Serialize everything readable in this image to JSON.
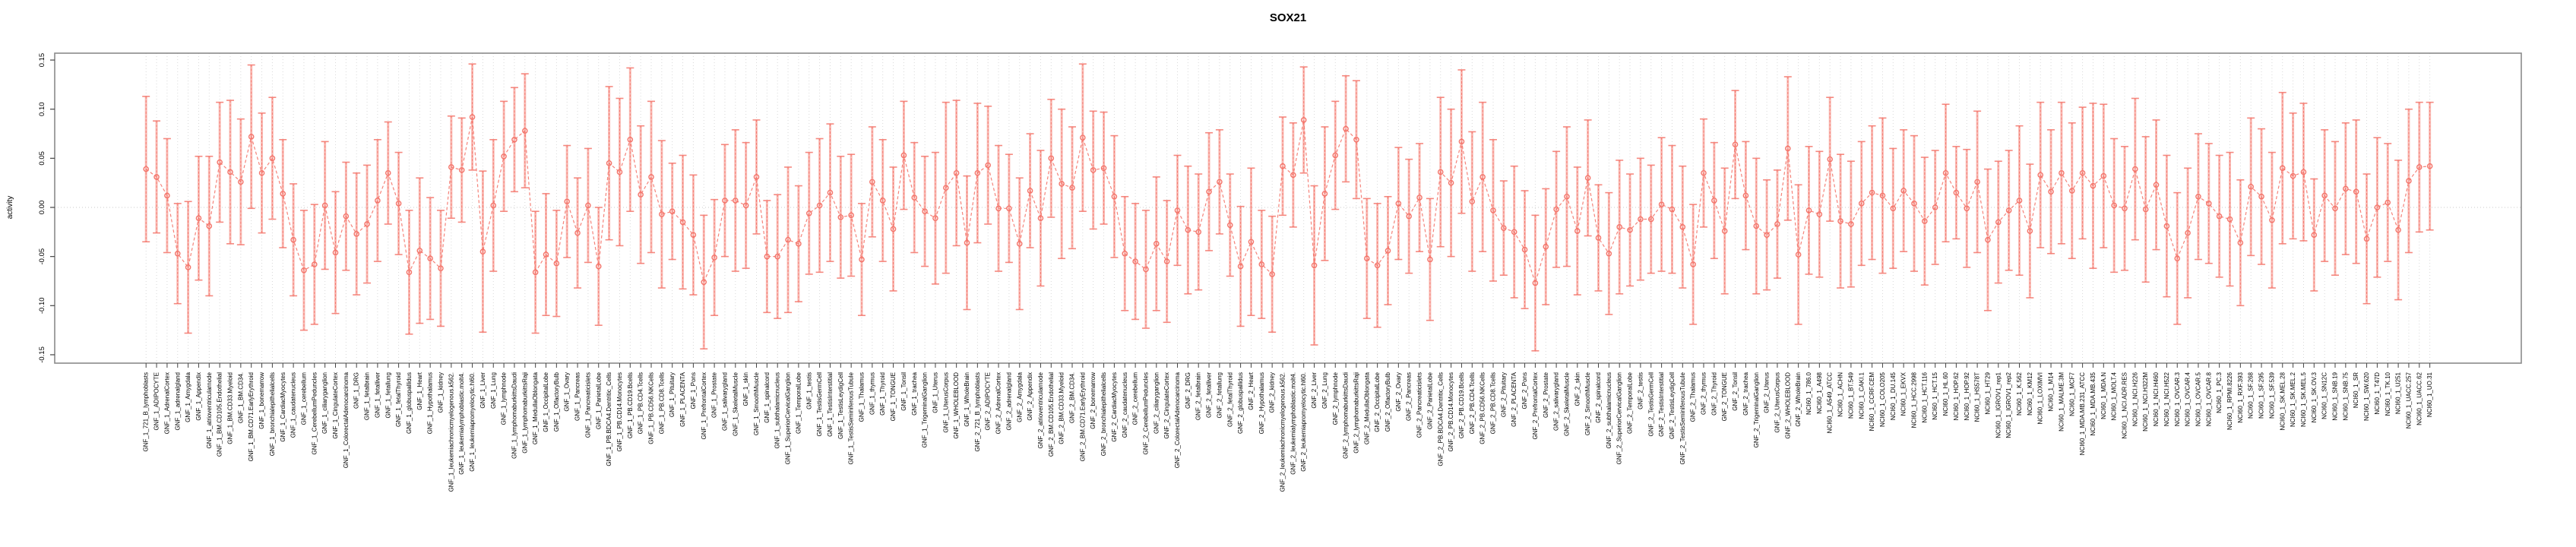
{
  "title": "SOX21",
  "colors": {
    "point": "#f4756b",
    "error_light": "#f9aca4",
    "grid": "#d9d9d9",
    "zero_line": "#c9c9c9",
    "box_border": "#8a8a8a",
    "text": "#000000"
  },
  "chart_data": {
    "type": "line",
    "title": "SOX21",
    "xlabel": "",
    "ylabel": "activity",
    "ylim": [
      -0.15,
      0.15
    ],
    "yticks": [
      -0.15,
      -0.1,
      -0.05,
      0.0,
      0.05,
      0.1,
      0.15
    ],
    "ytick_labels": [
      "-0.15",
      "-0.10",
      "-0.05",
      "0.00",
      "0.05",
      "0.10",
      "0.15"
    ],
    "grid": "vertical-dotted-per-category, horizontal-dotted-at-zero",
    "legend": "none",
    "marker": "open-circle",
    "line_style": "dashed",
    "error_bars": true,
    "categories": [
      "GNF_1_721_B_lymphoblasts",
      "GNF_1_ADIPOCYTE",
      "GNF_1_AdrenalCortex",
      "GNF_1_adrenalgland",
      "GNF_1_Amygdala",
      "GNF_1_Appendix",
      "GNF_1_atrioventricularnode",
      "GNF_1_BM.CD105.Endothelial",
      "GNF_1_BM.CD33.Myeloid",
      "GNF_1_BM.CD34.",
      "GNF_1_BM.CD71.EarlyErythroid",
      "GNF_1_bonemarrow",
      "GNF_1_bronchialepithelialcells",
      "GNF_1_CardiacMyocytes",
      "GNF_1_caudatenucleus",
      "GNF_1_cerebellum",
      "GNF_1_CerebellumPeduncles",
      "GNF_1_ciliaryganglion",
      "GNF_1_CingulateCortex",
      "GNF_1_ColorectalAdenocarcinoma",
      "GNF_1_DRG",
      "GNF_1_fetalbrain",
      "GNF_1_fetalliver",
      "GNF_1_fetallung",
      "GNF_1_fetalThyroid",
      "GNF_1_globuspallidus",
      "GNF_1_Heart",
      "GNF_1_Hypothalamus",
      "GNF_1_kidney",
      "GNF_1_leukemiachronicmyelogenous.k562.",
      "GNF_1_leukemialymphoblastic.molt4.",
      "GNF_1_leukemiapromyelocytic.hl60.",
      "GNF_1_Liver",
      "GNF_1_Lung",
      "GNF_1_lymphnode",
      "GNF_1_lymphomaburkittsDaudi",
      "GNF_1_lymphomaburkittsRaji",
      "GNF_1_MedullaOblongata",
      "GNF_1_OccipitalLobe",
      "GNF_1_OlfactoryBulb",
      "GNF_1_Ovary",
      "GNF_1_Pancreas",
      "GNF_1_Pancreaticislets",
      "GNF_1_ParietalLobe",
      "GNF_1_PB.BDCA4.Dentritic_Cells",
      "GNF_1_PB.CD14.Monocytes",
      "GNF_1_PB.CD19.Bcells",
      "GNF_1_PB.CD4.Tcells",
      "GNF_1_PB.CD56.NKCells",
      "GNF_1_PB.CD8.Tcells",
      "GNF_1_Pituitary",
      "GNF_1_PLACENTA",
      "GNF_1_Pons",
      "GNF_1_PrefrontalCortex",
      "GNF_1_Prostate",
      "GNF_1_salivarygland",
      "GNF_1_SkeletalMuscle",
      "GNF_1_skin",
      "GNF_1_SmoothMuscle",
      "GNF_1_spinalcord",
      "GNF_1_subthalamicnucleus",
      "GNF_1_SuperiorCervicalGanglion",
      "GNF_1_TemporalLobe",
      "GNF_1_testis",
      "GNF_1_TestisGermCell",
      "GNF_1_TestisInterstitial",
      "GNF_1_TestisLeydigCell",
      "GNF_1_TestisSeminiferousTubule",
      "GNF_1_Thalamus",
      "GNF_1_thymus",
      "GNF_1_Thyroid",
      "GNF_1_TONGUE",
      "GNF_1_Tonsil",
      "GNF_1_trachea",
      "GNF_1_TrigeminalGanglion",
      "GNF_1_Uterus",
      "GNF_1_UterusCorpus",
      "GNF_1_WHOLEBLOOD",
      "GNF_1_WholeBrain",
      "GNF_2_721_B_lymphoblasts",
      "GNF_2_ADIPOCYTE",
      "GNF_2_AdrenalCortex",
      "GNF_2_adrenalgland",
      "GNF_2_Amygdala",
      "GNF_2_Appendix",
      "GNF_2_atrioventricularnode",
      "GNF_2_BM.CD105.Endothelial",
      "GNF_2_BM.CD33.Myeloid",
      "GNF_2_BM.CD34.",
      "GNF_2_BM.CD71.EarlyErythroid",
      "GNF_2_bonemarrow",
      "GNF_2_bronchialepithelialcells",
      "GNF_2_CardiacMyocytes",
      "GNF_2_caudatenucleus",
      "GNF_2_cerebellum",
      "GNF_2_CerebellumPeduncles",
      "GNF_2_ciliaryganglion",
      "GNF_2_CingulateCortex",
      "GNF_2_ColorectalAdenocarcinoma",
      "GNF_2_DRG",
      "GNF_2_fetalbrain",
      "GNF_2_fetalliver",
      "GNF_2_fetallung",
      "GNF_2_fetalThyroid",
      "GNF_2_globuspallidus",
      "GNF_2_Heart",
      "GNF_2_Hypothalamus",
      "GNF_2_kidney",
      "GNF_2_leukemiachronicmyelogenous.k562.",
      "GNF_2_leukemialymphoblastic.molt4.",
      "GNF_2_leukemiapromyelocytic.hl60.",
      "GNF_2_Liver",
      "GNF_2_Lung",
      "GNF_2_lymphnode",
      "GNF_2_lymphomaburkittsDaudi",
      "GNF_2_lymphomaburkittsRaji",
      "GNF_2_MedullaOblongata",
      "GNF_2_OccipitalLobe",
      "GNF_2_OlfactoryBulb",
      "GNF_2_Ovary",
      "GNF_2_Pancreas",
      "GNF_2_Pancreaticislets",
      "GNF_2_ParietalLobe",
      "GNF_2_PB.BDCA4.Dentritic_Cells",
      "GNF_2_PB.CD14.Monocytes",
      "GNF_2_PB.CD19.Bcells",
      "GNF_2_PB.CD4.Tcells",
      "GNF_2_PB.CD56.NKCells",
      "GNF_2_PB.CD8.Tcells",
      "GNF_2_Pituitary",
      "GNF_2_PLACENTA",
      "GNF_2_Pons",
      "GNF_2_PrefrontalCortex",
      "GNF_2_Prostate",
      "GNF_2_salivarygland",
      "GNF_2_SkeletalMuscle",
      "GNF_2_skin",
      "GNF_2_SmoothMuscle",
      "GNF_2_spinalcord",
      "GNF_2_subthalamicnucleus",
      "GNF_2_SuperiorCervicalGanglion",
      "GNF_2_TemporalLobe",
      "GNF_2_testis",
      "GNF_2_TestisGermCell",
      "GNF_2_TestisInterstitial",
      "GNF_2_TestisLeydigCell",
      "GNF_2_TestisSeminiferousTubule",
      "GNF_2_Thalamus",
      "GNF_2_thymus",
      "GNF_2_Thyroid",
      "GNF_2_TONGUE",
      "GNF_2_Tonsil",
      "GNF_2_trachea",
      "GNF_2_TrigeminalGanglion",
      "GNF_2_Uterus",
      "GNF_2_UterusCorpus",
      "GNF_2_WHOLEBLOOD",
      "GNF_2_WholeBrain",
      "NCI60_1_786.0",
      "NCI60_1_A498",
      "NCI60_1_A549_ATCC",
      "NCI60_1_ACHN",
      "NCI60_1_BT.549",
      "NCI60_1_CAKI.1",
      "NCI60_1_CCRF.CEM",
      "NCI60_1_COLO205",
      "NCI60_1_DU.145",
      "NCI60_1_EKVX",
      "NCI60_1_HCC.2998",
      "NCI60_1_HCT.116",
      "NCI60_1_HCT.15",
      "NCI60_1_HL.60",
      "NCI60_1_HOP.62",
      "NCI60_1_HOP.92",
      "NCI60_1_HS578T",
      "NCI60_1_HT29",
      "NCI60_1_IGROV1_rep1",
      "NCI60_1_IGROV1_rep2",
      "NCI60_1_K.562",
      "NCI60_1_KM12",
      "NCI60_1_LOXIMVI",
      "NCI60_1_M14",
      "NCI60_1_MALME.3M",
      "NCI60_1_MCF7",
      "NCI60_1_MDA.MB.231_ATCC",
      "NCI60_1_MDA.MB.435",
      "NCI60_1_MDA.N",
      "NCI60_1_MOLT.4",
      "NCI60_1_NCI.ADR.RES",
      "NCI60_1_NCI.H226",
      "NCI60_1_NCI.H322M",
      "NCI60_1_NCI.H460",
      "NCI60_1_NCI.H522",
      "NCI60_1_OVCAR.3",
      "NCI60_1_OVCAR.4",
      "NCI60_1_OVCAR.5",
      "NCI60_1_OVCAR.8",
      "NCI60_1_PC.3",
      "NCI60_1_RPMI.8226",
      "NCI60_1_RXF.393",
      "NCI60_1_SF.268",
      "NCI60_1_SF.295",
      "NCI60_1_SF.539",
      "NCI60_1_SK.MEL.28",
      "NCI60_1_SK.MEL.2",
      "NCI60_1_SK.MEL.5",
      "NCI60_1_SK.OV.3",
      "NCI60_1_SN12C",
      "NCI60_1_SNB.19",
      "NCI60_1_SNB.75",
      "NCI60_1_SR",
      "NCI60_1_SW.620",
      "NCI60_1_T47D",
      "NCI60_1_TK.10",
      "NCI60_1_U251",
      "NCI60_1_UACC.257",
      "NCI60_1_UACC.62",
      "NCI60_1_UO.31"
    ],
    "values": [
      0.039,
      0.031,
      0.012,
      -0.047,
      -0.061,
      -0.011,
      -0.019,
      0.046,
      0.036,
      0.026,
      0.072,
      0.035,
      0.05,
      0.014,
      -0.033,
      -0.064,
      -0.058,
      0.002,
      -0.046,
      -0.009,
      -0.027,
      -0.017,
      0.007,
      0.035,
      0.004,
      -0.066,
      -0.044,
      -0.052,
      -0.062,
      0.041,
      0.038,
      0.092,
      -0.045,
      0.002,
      0.052,
      0.069,
      0.078,
      -0.066,
      -0.048,
      -0.057,
      0.006,
      -0.026,
      0.002,
      -0.06,
      0.045,
      0.036,
      0.069,
      0.013,
      0.031,
      -0.007,
      -0.004,
      -0.015,
      -0.028,
      -0.076,
      -0.051,
      0.007,
      0.007,
      0.002,
      0.031,
      -0.05,
      -0.05,
      -0.033,
      -0.037,
      -0.006,
      0.002,
      0.015,
      -0.01,
      -0.008,
      -0.053,
      0.026,
      0.007,
      -0.022,
      0.053,
      0.01,
      -0.004,
      -0.011,
      0.02,
      0.035,
      -0.036,
      0.035,
      0.043,
      -0.001,
      -0.001,
      -0.037,
      0.017,
      -0.011,
      0.05,
      0.024,
      0.02,
      0.071,
      0.038,
      0.04,
      0.011,
      -0.047,
      -0.055,
      -0.063,
      -0.037,
      -0.055,
      -0.003,
      -0.023,
      -0.025,
      0.016,
      0.026,
      -0.018,
      -0.06,
      -0.035,
      -0.058,
      -0.068,
      0.042,
      0.033,
      0.089,
      -0.059,
      0.014,
      0.053,
      0.08,
      0.069,
      -0.052,
      -0.059,
      -0.044,
      0.004,
      -0.009,
      0.01,
      -0.053,
      0.036,
      0.025,
      0.067,
      0.006,
      0.031,
      -0.003,
      -0.021,
      -0.025,
      -0.043,
      -0.077,
      -0.04,
      -0.002,
      0.011,
      -0.024,
      0.03,
      -0.031,
      -0.047,
      -0.02,
      -0.023,
      -0.012,
      -0.012,
      0.003,
      -0.002,
      -0.02,
      -0.058,
      0.035,
      0.007,
      -0.024,
      0.064,
      0.012,
      -0.019,
      -0.028,
      -0.017,
      0.06,
      -0.048,
      -0.003,
      -0.007,
      0.049,
      -0.014,
      -0.017,
      0.004,
      0.015,
      0.012,
      -0.001,
      0.017,
      0.004,
      -0.014,
      0.0,
      0.035,
      0.015,
      -0.001,
      0.026,
      -0.033,
      -0.015,
      -0.003,
      0.007,
      -0.024,
      0.033,
      0.016,
      0.035,
      0.017,
      0.035,
      0.022,
      0.032,
      0.002,
      -0.001,
      0.039,
      -0.002,
      0.023,
      -0.019,
      -0.052,
      -0.026,
      0.011,
      0.004,
      -0.009,
      -0.012,
      -0.036,
      0.021,
      0.011,
      -0.013,
      0.04,
      0.032,
      0.036,
      -0.028,
      0.012,
      -0.001,
      0.019,
      0.016,
      -0.032,
      0.0,
      0.005,
      -0.023,
      0.027,
      0.041,
      0.042
    ],
    "errors": [
      0.074,
      0.057,
      0.058,
      0.051,
      0.067,
      0.063,
      0.071,
      0.061,
      0.073,
      0.064,
      0.073,
      0.061,
      0.062,
      0.055,
      0.057,
      0.061,
      0.061,
      0.065,
      0.062,
      0.055,
      0.062,
      0.06,
      0.062,
      0.052,
      0.052,
      0.063,
      0.074,
      0.062,
      0.059,
      0.052,
      0.053,
      0.054,
      0.082,
      0.067,
      0.056,
      0.053,
      0.058,
      0.062,
      0.062,
      0.054,
      0.057,
      0.056,
      0.058,
      0.06,
      0.078,
      0.075,
      0.073,
      0.07,
      0.077,
      0.075,
      0.049,
      0.068,
      0.061,
      0.068,
      0.059,
      0.057,
      0.072,
      0.064,
      0.058,
      0.057,
      0.063,
      0.074,
      0.059,
      0.062,
      0.068,
      0.07,
      0.062,
      0.062,
      0.057,
      0.056,
      0.062,
      0.063,
      0.055,
      0.056,
      0.056,
      0.067,
      0.087,
      0.074,
      0.068,
      0.071,
      0.06,
      0.064,
      0.055,
      0.067,
      0.058,
      0.069,
      0.06,
      0.076,
      0.062,
      0.075,
      0.06,
      0.057,
      0.062,
      0.058,
      0.059,
      0.06,
      0.068,
      0.062,
      0.056,
      0.065,
      0.059,
      0.06,
      0.053,
      0.052,
      0.061,
      0.075,
      0.055,
      0.059,
      0.05,
      0.053,
      0.054,
      0.081,
      0.068,
      0.055,
      0.054,
      0.06,
      0.061,
      0.063,
      0.055,
      0.057,
      0.058,
      0.055,
      0.062,
      0.076,
      0.075,
      0.073,
      0.071,
      0.076,
      0.072,
      0.048,
      0.067,
      0.06,
      0.069,
      0.059,
      0.059,
      0.071,
      0.065,
      0.059,
      0.054,
      0.062,
      0.068,
      0.057,
      0.062,
      0.055,
      0.068,
      0.065,
      0.062,
      0.061,
      0.055,
      0.059,
      0.064,
      0.055,
      0.055,
      0.069,
      0.056,
      0.055,
      0.073,
      0.071,
      0.065,
      0.064,
      0.063,
      0.068,
      0.064,
      0.063,
      0.068,
      0.079,
      0.061,
      0.062,
      0.069,
      0.065,
      0.058,
      0.07,
      0.047,
      0.06,
      0.072,
      0.072,
      0.062,
      0.061,
      0.076,
      0.068,
      0.074,
      0.063,
      0.072,
      0.069,
      0.067,
      0.084,
      0.073,
      0.068,
      0.063,
      0.072,
      0.074,
      0.066,
      0.072,
      0.067,
      0.066,
      0.064,
      0.061,
      0.062,
      0.068,
      0.064,
      0.07,
      0.069,
      0.069,
      0.077,
      0.064,
      0.07,
      0.057,
      0.067,
      0.068,
      0.067,
      0.073,
      0.066,
      0.071,
      0.06,
      0.071,
      0.073,
      0.066,
      0.065
    ]
  }
}
